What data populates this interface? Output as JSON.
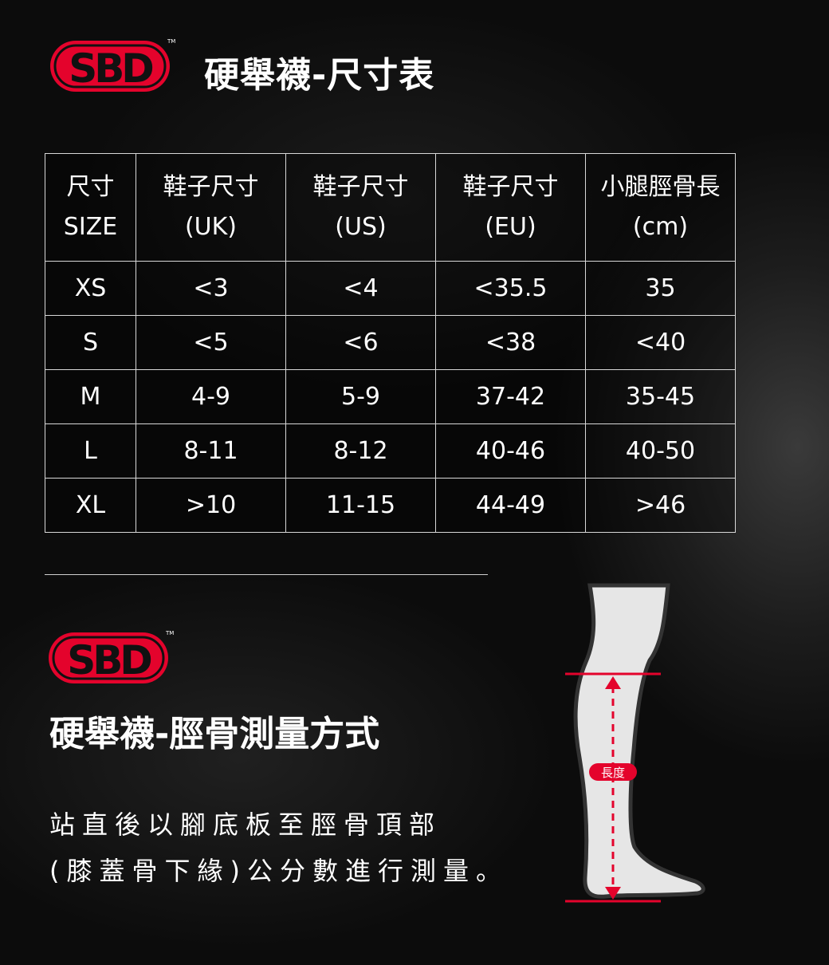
{
  "brand": {
    "logo_text": "SBD",
    "trademark": "TM",
    "color": "#e4032c"
  },
  "header": {
    "title": "硬舉襪-尺寸表"
  },
  "table": {
    "headers": [
      [
        "尺寸",
        "SIZE"
      ],
      [
        "鞋子尺寸",
        "(UK)"
      ],
      [
        "鞋子尺寸",
        "(US)"
      ],
      [
        "鞋子尺寸",
        "(EU)"
      ],
      [
        "小腿脛骨長",
        "(cm)"
      ]
    ],
    "rows": [
      [
        "XS",
        "<3",
        "<4",
        "<35.5",
        "35"
      ],
      [
        "S",
        "<5",
        "<6",
        "<38",
        "<40"
      ],
      [
        "M",
        "4-9",
        "5-9",
        "37-42",
        "35-45"
      ],
      [
        "L",
        "8-11",
        "8-12",
        "40-46",
        "40-50"
      ],
      [
        "XL",
        ">10",
        "11-15",
        "44-49",
        ">46"
      ]
    ]
  },
  "measure": {
    "title": "硬舉襪-脛骨測量方式",
    "desc_line1": "站直後以腳底板至脛骨頂部",
    "desc_line2": "(膝蓋骨下緣)公分數進行測量。",
    "label": "長度"
  }
}
